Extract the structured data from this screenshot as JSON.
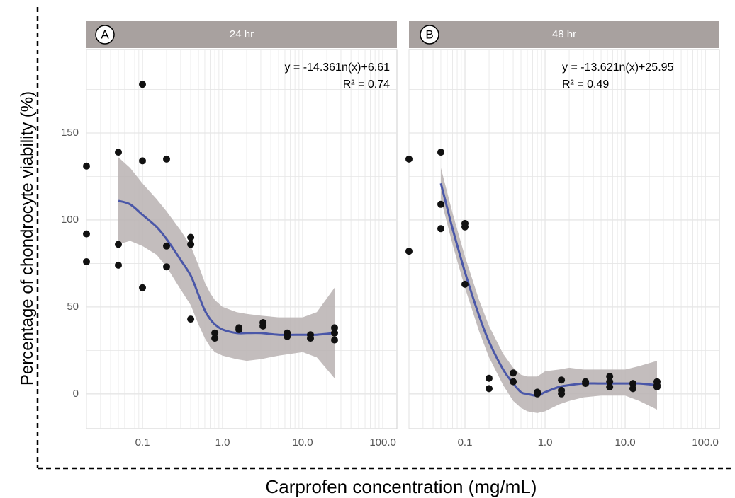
{
  "figure": {
    "ylabel": "Percentage of chondrocyte viability (%)",
    "xlabel": "Carprofen concentration (mg/mL)"
  },
  "colors": {
    "point": "#111111",
    "fit_line": "#4a57a8",
    "ribbon": "#b8b2b2",
    "strip": "#a8a19f",
    "panel_bg": "#ffffff",
    "grid": "#e6e6e6"
  },
  "chart_data": [
    {
      "type": "scatter",
      "panel": "A",
      "strip_label": "24 hr",
      "equation": "y = -14.361n(x)+6.61",
      "r2_label": "R² = 0.74",
      "xscale": "log",
      "xlim": [
        0.02,
        150
      ],
      "ylim": [
        -20,
        198
      ],
      "xticks": [
        0.1,
        1,
        10,
        100
      ],
      "xtick_labels": [
        "0.1",
        "1.0",
        "10.0",
        "100.0"
      ],
      "yticks": [
        0,
        50,
        100,
        150
      ],
      "ytick_labels": [
        "0",
        "50",
        "100",
        "150"
      ],
      "grid": true,
      "points": [
        [
          0.02,
          131
        ],
        [
          0.02,
          92
        ],
        [
          0.02,
          76
        ],
        [
          0.05,
          139
        ],
        [
          0.05,
          86
        ],
        [
          0.05,
          74
        ],
        [
          0.1,
          178
        ],
        [
          0.1,
          134
        ],
        [
          0.1,
          61
        ],
        [
          0.2,
          135
        ],
        [
          0.2,
          85
        ],
        [
          0.2,
          73
        ],
        [
          0.4,
          90
        ],
        [
          0.4,
          86
        ],
        [
          0.4,
          43
        ],
        [
          0.8,
          35
        ],
        [
          0.8,
          32
        ],
        [
          1.6,
          38
        ],
        [
          1.6,
          37
        ],
        [
          3.2,
          41
        ],
        [
          3.2,
          39
        ],
        [
          6.4,
          35
        ],
        [
          6.4,
          33
        ],
        [
          12.5,
          34
        ],
        [
          12.5,
          32
        ],
        [
          25,
          38
        ],
        [
          25,
          35
        ],
        [
          25,
          31
        ]
      ],
      "fit": [
        [
          0.05,
          111
        ],
        [
          0.07,
          109
        ],
        [
          0.1,
          103
        ],
        [
          0.15,
          96
        ],
        [
          0.2,
          89
        ],
        [
          0.3,
          77
        ],
        [
          0.4,
          68
        ],
        [
          0.5,
          57
        ],
        [
          0.6,
          48
        ],
        [
          0.7,
          43
        ],
        [
          0.8,
          40
        ],
        [
          1.0,
          37
        ],
        [
          1.5,
          35
        ],
        [
          2.0,
          35
        ],
        [
          3.0,
          35
        ],
        [
          5.0,
          34
        ],
        [
          10,
          34
        ],
        [
          15,
          34
        ],
        [
          25,
          35
        ]
      ],
      "ci_upper": [
        [
          0.05,
          136
        ],
        [
          0.07,
          130
        ],
        [
          0.1,
          121
        ],
        [
          0.15,
          112
        ],
        [
          0.2,
          105
        ],
        [
          0.3,
          94
        ],
        [
          0.4,
          85
        ],
        [
          0.5,
          74
        ],
        [
          0.6,
          64
        ],
        [
          0.7,
          58
        ],
        [
          0.8,
          54
        ],
        [
          1.0,
          50
        ],
        [
          1.5,
          47
        ],
        [
          2.0,
          46
        ],
        [
          3.0,
          45
        ],
        [
          5.0,
          44
        ],
        [
          10,
          44
        ],
        [
          15,
          47
        ],
        [
          25,
          61
        ]
      ],
      "ci_lower": [
        [
          0.05,
          86
        ],
        [
          0.07,
          88
        ],
        [
          0.1,
          85
        ],
        [
          0.15,
          80
        ],
        [
          0.2,
          73
        ],
        [
          0.3,
          60
        ],
        [
          0.4,
          51
        ],
        [
          0.5,
          40
        ],
        [
          0.6,
          32
        ],
        [
          0.7,
          27
        ],
        [
          0.8,
          24
        ],
        [
          1.0,
          22
        ],
        [
          1.5,
          20
        ],
        [
          2.0,
          19
        ],
        [
          3.0,
          20
        ],
        [
          5.0,
          22
        ],
        [
          10,
          24
        ],
        [
          15,
          21
        ],
        [
          25,
          9
        ]
      ]
    },
    {
      "type": "scatter",
      "panel": "B",
      "strip_label": "48 hr",
      "equation": "y = -13.621n(x)+25.95",
      "r2_label": "R² = 0.49",
      "xscale": "log",
      "xlim": [
        0.02,
        150
      ],
      "ylim": [
        -20,
        198
      ],
      "xticks": [
        0.1,
        1,
        10,
        100
      ],
      "xtick_labels": [
        "0.1",
        "1.0",
        "10.0",
        "100.0"
      ],
      "yticks": [
        0,
        50,
        100,
        150
      ],
      "ytick_labels": [
        "0",
        "50",
        "100",
        "150"
      ],
      "grid": true,
      "points": [
        [
          0.02,
          135
        ],
        [
          0.02,
          82
        ],
        [
          0.05,
          139
        ],
        [
          0.05,
          109
        ],
        [
          0.05,
          95
        ],
        [
          0.1,
          98
        ],
        [
          0.1,
          96
        ],
        [
          0.1,
          63
        ],
        [
          0.2,
          9
        ],
        [
          0.2,
          3
        ],
        [
          0.4,
          12
        ],
        [
          0.4,
          7
        ],
        [
          0.8,
          1
        ],
        [
          0.8,
          0
        ],
        [
          1.6,
          8
        ],
        [
          1.6,
          2
        ],
        [
          1.6,
          0
        ],
        [
          3.2,
          7
        ],
        [
          3.2,
          6
        ],
        [
          6.4,
          10
        ],
        [
          6.4,
          7
        ],
        [
          6.4,
          4
        ],
        [
          12.5,
          6
        ],
        [
          12.5,
          3
        ],
        [
          25,
          7
        ],
        [
          25,
          5
        ],
        [
          25,
          4
        ]
      ],
      "fit": [
        [
          0.05,
          121
        ],
        [
          0.06,
          107
        ],
        [
          0.07,
          95
        ],
        [
          0.1,
          70
        ],
        [
          0.15,
          45
        ],
        [
          0.2,
          30
        ],
        [
          0.3,
          14
        ],
        [
          0.4,
          6
        ],
        [
          0.5,
          1
        ],
        [
          0.6,
          0
        ],
        [
          0.8,
          -1
        ],
        [
          1.0,
          1
        ],
        [
          1.5,
          4
        ],
        [
          2.0,
          5
        ],
        [
          3.0,
          6
        ],
        [
          5.0,
          6
        ],
        [
          10,
          6
        ],
        [
          15,
          6
        ],
        [
          25,
          5
        ]
      ],
      "ci_upper": [
        [
          0.05,
          130
        ],
        [
          0.06,
          116
        ],
        [
          0.07,
          104
        ],
        [
          0.1,
          79
        ],
        [
          0.15,
          54
        ],
        [
          0.2,
          39
        ],
        [
          0.3,
          23
        ],
        [
          0.4,
          15
        ],
        [
          0.5,
          11
        ],
        [
          0.6,
          10
        ],
        [
          0.8,
          10
        ],
        [
          1.0,
          13
        ],
        [
          1.5,
          14
        ],
        [
          2.0,
          15
        ],
        [
          3.0,
          14
        ],
        [
          5.0,
          14
        ],
        [
          10,
          14
        ],
        [
          15,
          16
        ],
        [
          25,
          19
        ]
      ],
      "ci_lower": [
        [
          0.05,
          112
        ],
        [
          0.06,
          98
        ],
        [
          0.07,
          86
        ],
        [
          0.1,
          61
        ],
        [
          0.15,
          36
        ],
        [
          0.2,
          21
        ],
        [
          0.3,
          5
        ],
        [
          0.4,
          -4
        ],
        [
          0.5,
          -8
        ],
        [
          0.6,
          -10
        ],
        [
          0.8,
          -11
        ],
        [
          1.0,
          -10
        ],
        [
          1.5,
          -6
        ],
        [
          2.0,
          -4
        ],
        [
          3.0,
          -2
        ],
        [
          5.0,
          -1
        ],
        [
          10,
          -1
        ],
        [
          15,
          -4
        ],
        [
          25,
          -9
        ]
      ]
    }
  ]
}
